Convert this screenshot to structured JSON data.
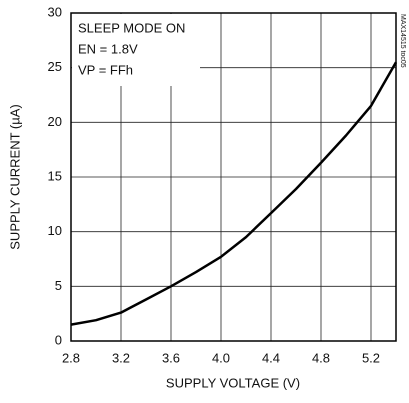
{
  "chart_data": {
    "type": "line",
    "xlabel": "SUPPLY VOLTAGE (V)",
    "ylabel": "SUPPLY CURRENT (µA)",
    "annotations": [
      "SLEEP MODE ON",
      "EN = 1.8V",
      "VP = FFh"
    ],
    "figure_id": "MAX14515 toc05",
    "x": [
      2.8,
      3.0,
      3.2,
      3.4,
      3.6,
      3.8,
      4.0,
      4.2,
      4.4,
      4.6,
      4.8,
      5.0,
      5.2,
      5.4
    ],
    "values": [
      1.5,
      1.9,
      2.6,
      3.8,
      5.0,
      6.3,
      7.7,
      9.5,
      11.7,
      13.9,
      16.3,
      18.8,
      21.5,
      25.5
    ],
    "color": "#000000",
    "xlim": [
      2.8,
      5.4
    ],
    "xticks": [
      2.8,
      3.2,
      3.6,
      {
        "value": 4,
        "label": "4.0"
      },
      4.4,
      4.8,
      5.2
    ],
    "ylim": [
      0,
      30
    ],
    "yticks": [
      0,
      5,
      10,
      15,
      20,
      25,
      30
    ],
    "grid": true
  }
}
